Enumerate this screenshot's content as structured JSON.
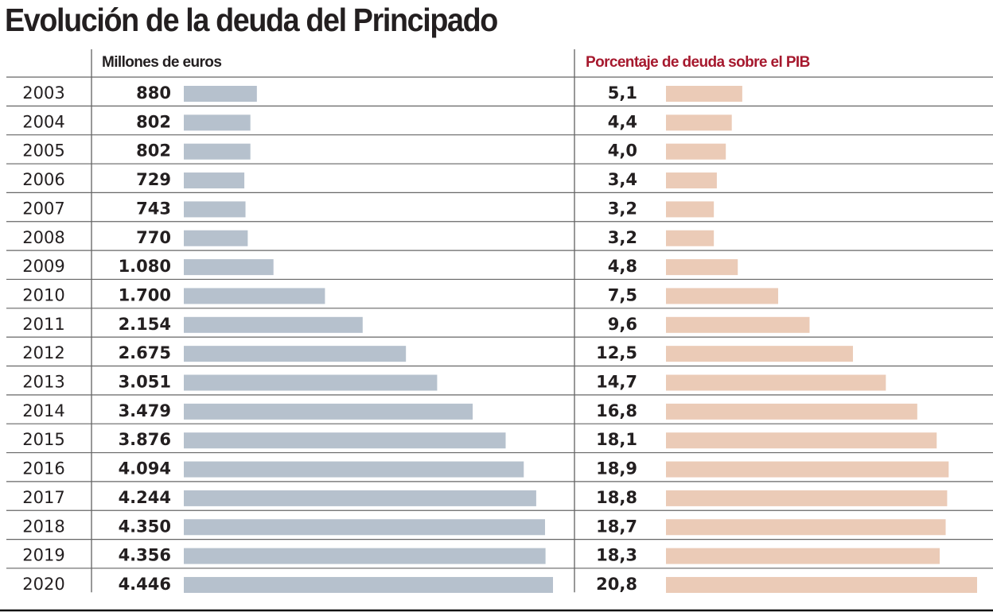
{
  "title": "Evolución de la deuda del Principado",
  "chart_data": [
    {
      "type": "bar",
      "orientation": "horizontal",
      "title": "Millones de euros",
      "title_color": "#231f20",
      "bar_color": "#b6c1cd",
      "categories": [
        "2003",
        "2004",
        "2005",
        "2006",
        "2007",
        "2008",
        "2009",
        "2010",
        "2011",
        "2012",
        "2013",
        "2014",
        "2015",
        "2016",
        "2017",
        "2018",
        "2019",
        "2020"
      ],
      "values": [
        880,
        802,
        802,
        729,
        743,
        770,
        1080,
        1700,
        2154,
        2675,
        3051,
        3479,
        3876,
        4094,
        4244,
        4350,
        4356,
        4446
      ],
      "labels": [
        "880",
        "802",
        "802",
        "729",
        "743",
        "770",
        "1.080",
        "1.700",
        "2.154",
        "2.675",
        "3.051",
        "3.479",
        "3.876",
        "4.094",
        "4.244",
        "4.350",
        "4.356",
        "4.446"
      ],
      "xlim": [
        0,
        4446
      ]
    },
    {
      "type": "bar",
      "orientation": "horizontal",
      "title": "Porcentaje de deuda sobre el PIB",
      "title_color": "#a6192e",
      "bar_color": "#ebcbb7",
      "categories": [
        "2003",
        "2004",
        "2005",
        "2006",
        "2007",
        "2008",
        "2009",
        "2010",
        "2011",
        "2012",
        "2013",
        "2014",
        "2015",
        "2016",
        "2017",
        "2018",
        "2019",
        "2020"
      ],
      "values": [
        5.1,
        4.4,
        4.0,
        3.4,
        3.2,
        3.2,
        4.8,
        7.5,
        9.6,
        12.5,
        14.7,
        16.8,
        18.1,
        18.9,
        18.8,
        18.7,
        18.3,
        20.8
      ],
      "labels": [
        "5,1",
        "4,4",
        "4,0",
        "3,4",
        "3,2",
        "3,2",
        "4,8",
        "7,5",
        "9,6",
        "12,5",
        "14,7",
        "16,8",
        "18,1",
        "18,9",
        "18,8",
        "18,7",
        "18,3",
        "20,8"
      ],
      "xlim": [
        0,
        20.8
      ]
    }
  ]
}
